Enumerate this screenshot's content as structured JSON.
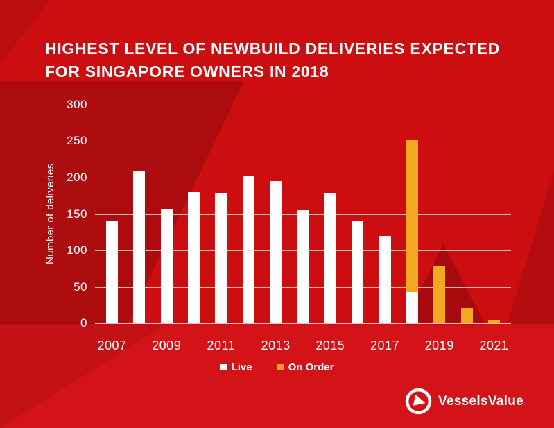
{
  "title": {
    "line1": "HIGHEST LEVEL OF NEWBUILD DELIVERIES EXPECTED",
    "line2": "FOR SINGAPORE OWNERS IN 2018"
  },
  "colors": {
    "background_red": "#cc0e11",
    "background_dark_red": "#ad0c0f",
    "bottom_band_red": "#d41318",
    "bar_live": "#ffffff",
    "bar_on_order": "#f3a81f",
    "gridline": "rgba(255,235,235,0.75)",
    "axis_line": "#f2c3c0",
    "text": "#ffffff"
  },
  "chart_data": {
    "type": "bar",
    "stacked": true,
    "title": "HIGHEST LEVEL OF NEWBUILD DELIVERIES EXPECTED FOR SINGAPORE OWNERS IN 2018",
    "xlabel": "",
    "ylabel": "Number of deliveries",
    "ylim": [
      0,
      300
    ],
    "yticks": [
      0,
      50,
      100,
      150,
      200,
      250,
      300
    ],
    "grid": true,
    "legend_position": "bottom",
    "categories": [
      2007,
      2008,
      2009,
      2010,
      2011,
      2012,
      2013,
      2014,
      2015,
      2016,
      2017,
      2018,
      2019,
      2020,
      2021
    ],
    "xtick_labels": [
      "2007",
      "2009",
      "2011",
      "2013",
      "2015",
      "2017",
      "2019",
      "2021"
    ],
    "series": [
      {
        "name": "Live",
        "color": "#ffffff",
        "values": [
          141,
          209,
          156,
          180,
          179,
          203,
          195,
          155,
          179,
          141,
          120,
          43,
          0,
          0,
          0
        ]
      },
      {
        "name": "On Order",
        "color": "#f3a81f",
        "values": [
          0,
          0,
          0,
          0,
          0,
          0,
          0,
          0,
          0,
          0,
          0,
          208,
          78,
          21,
          4
        ]
      }
    ]
  },
  "legend": {
    "items": [
      {
        "label": "Live",
        "color": "#ffffff"
      },
      {
        "label": "On Order",
        "color": "#f3a81f"
      }
    ]
  },
  "footer": {
    "brand": "VesselsValue"
  }
}
